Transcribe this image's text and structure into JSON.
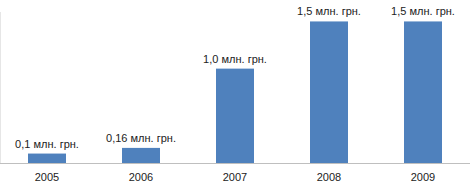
{
  "chart_data": {
    "type": "bar",
    "categories": [
      "2005",
      "2006",
      "2007",
      "2008",
      "2009"
    ],
    "values": [
      0.1,
      0.16,
      1.0,
      1.5,
      1.5
    ],
    "value_labels": [
      "0,1 млн. грн.",
      "0,16 млн. грн.",
      "1,0 млн. грн.",
      "1,5 млн. грн.",
      "1,5 млн. грн."
    ],
    "color": "#4f81bd",
    "ylim": [
      0,
      1.6
    ],
    "grid": false,
    "data_labels": true,
    "tick_labels": "x"
  }
}
